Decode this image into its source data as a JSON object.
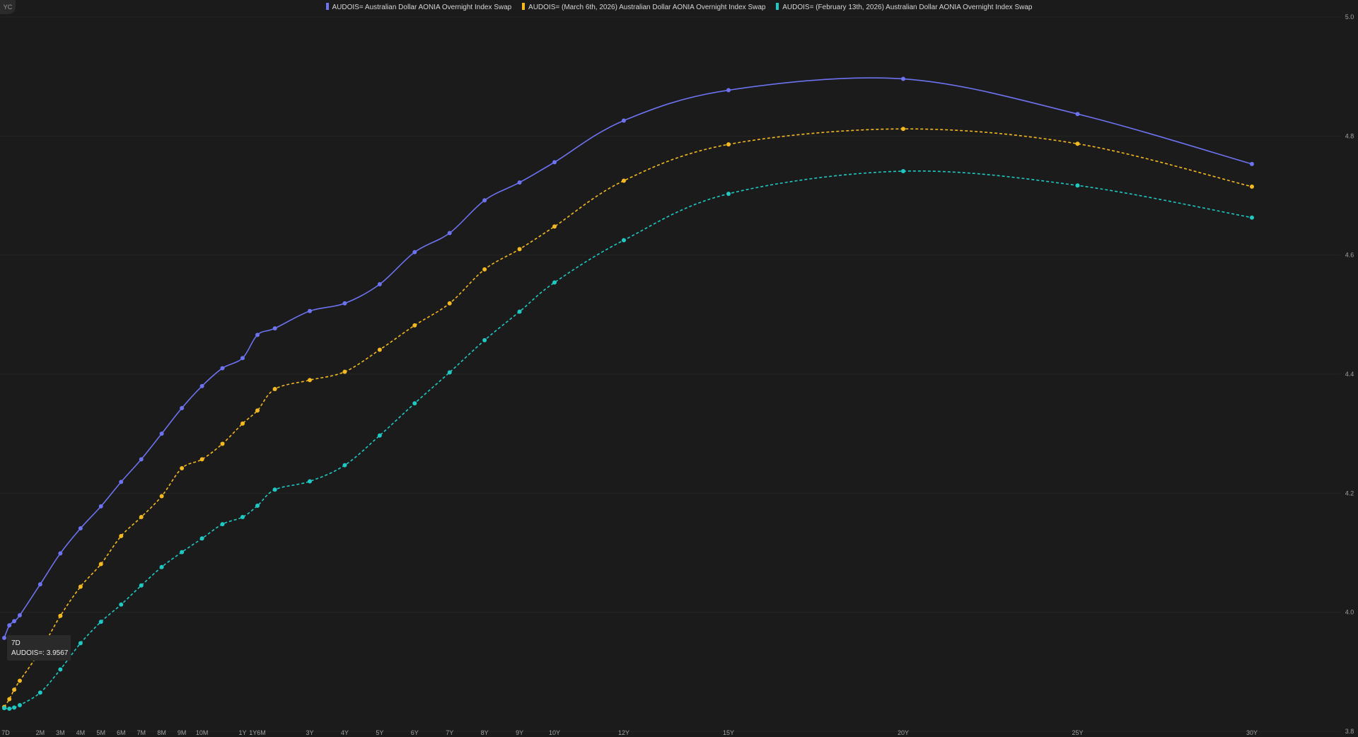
{
  "badge": "YC",
  "legend": [
    {
      "label": "AUDOIS= Australian Dollar AONIA Overnight Index Swap",
      "color": "#6d72f0"
    },
    {
      "label": "AUDOIS= (March 6th, 2026) Australian Dollar AONIA Overnight Index Swap",
      "color": "#f4b820"
    },
    {
      "label": "AUDOIS= (February 13th, 2026) Australian Dollar AONIA Overnight Index Swap",
      "color": "#1ec9c4"
    }
  ],
  "tooltip": {
    "tenor": "7D",
    "value": "AUDOIS=: 3.9567"
  },
  "chart_data": {
    "type": "line",
    "title": "",
    "xlabel": "",
    "ylabel": "",
    "ylim": [
      3.8,
      5.0
    ],
    "yticks": [
      "3.8",
      "4.0",
      "4.2",
      "4.4",
      "4.6",
      "4.8",
      "5.0"
    ],
    "grid": true,
    "legend_position": "top",
    "categories": [
      "7D",
      "",
      "",
      "",
      "2M",
      "3M",
      "4M",
      "5M",
      "6M",
      "7M",
      "8M",
      "9M",
      "10M",
      "",
      "1Y",
      "1Y6M",
      "",
      "3Y",
      "4Y",
      "5Y",
      "6Y",
      "7Y",
      "8Y",
      "9Y",
      "10Y",
      "12Y",
      "15Y",
      "20Y",
      "25Y",
      "30Y"
    ],
    "x_years": [
      0.019,
      0.04,
      0.06,
      0.083,
      0.167,
      0.25,
      0.333,
      0.417,
      0.5,
      0.583,
      0.667,
      0.75,
      0.833,
      0.917,
      1.0,
      1.5,
      2.0,
      3.0,
      4.0,
      5.0,
      6.0,
      7.0,
      8.0,
      9.0,
      10.0,
      12.0,
      15.0,
      20.0,
      25.0,
      30.0
    ],
    "series": [
      {
        "name": "AUDOIS= Australian Dollar AONIA Overnight Index Swap",
        "color": "#6d72f0",
        "dash": false,
        "values": [
          3.957,
          3.978,
          3.985,
          3.995,
          4.047,
          4.099,
          4.141,
          4.178,
          4.219,
          4.257,
          4.3,
          4.343,
          4.38,
          4.41,
          4.427,
          4.466,
          4.477,
          4.506,
          4.519,
          4.551,
          4.605,
          4.637,
          4.692,
          4.722,
          4.756,
          4.826,
          4.877,
          4.896,
          4.837,
          4.753
        ]
      },
      {
        "name": "AUDOIS= (March 6th, 2026) Australian Dollar AONIA Overnight Index Swap",
        "color": "#f4b820",
        "dash": true,
        "values": [
          3.841,
          3.854,
          3.87,
          3.885,
          3.935,
          3.994,
          4.043,
          4.081,
          4.128,
          4.16,
          4.195,
          4.242,
          4.257,
          4.283,
          4.317,
          4.339,
          4.375,
          4.39,
          4.404,
          4.441,
          4.482,
          4.519,
          4.576,
          4.61,
          4.648,
          4.725,
          4.786,
          4.812,
          4.787,
          4.715
        ]
      },
      {
        "name": "AUDOIS= (February 13th, 2026) Australian Dollar AONIA Overnight Index Swap",
        "color": "#1ec9c4",
        "dash": true,
        "values": [
          3.839,
          3.838,
          3.84,
          3.844,
          3.865,
          3.904,
          3.948,
          3.984,
          4.013,
          4.045,
          4.076,
          4.101,
          4.124,
          4.148,
          4.16,
          4.179,
          4.206,
          4.22,
          4.247,
          4.297,
          4.351,
          4.403,
          4.457,
          4.505,
          4.554,
          4.625,
          4.703,
          4.741,
          4.717,
          4.663
        ]
      }
    ]
  }
}
